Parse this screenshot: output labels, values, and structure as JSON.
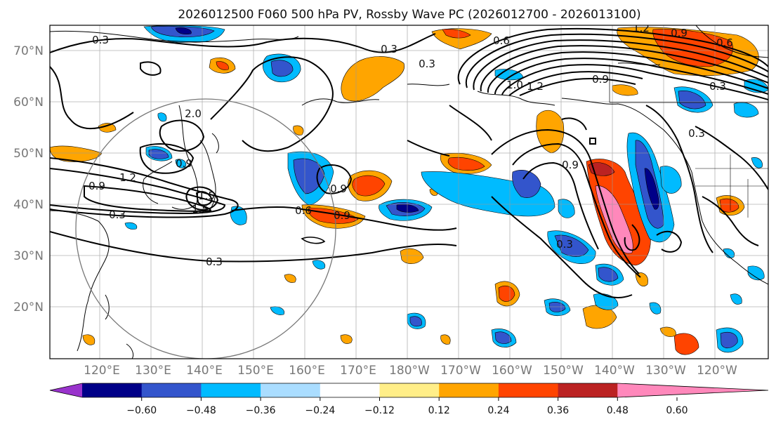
{
  "title": "2026012500 F060 500 hPa PV, Rossby Wave PC (2026012700 - 2026013100)",
  "lat_labels": [
    "70°N",
    "60°N",
    "50°N",
    "40°N",
    "30°N",
    "20°N"
  ],
  "lon_labels": [
    "120°E",
    "130°E",
    "140°E",
    "150°E",
    "160°E",
    "170°E",
    "180°W",
    "170°W",
    "160°W",
    "150°W",
    "140°W",
    "130°W",
    "120°W"
  ],
  "colorbar": {
    "colors": [
      "#9933cc",
      "#000088",
      "#3355cc",
      "#00bbff",
      "#aaddff",
      "#ffffff",
      "#ffee88",
      "#ffa500",
      "#ff4400",
      "#bb2222",
      "#ff88bb"
    ],
    "labels": [
      "−0.60",
      "−0.48",
      "−0.36",
      "−0.24",
      "−0.12",
      "0.12",
      "0.24",
      "0.36",
      "0.48",
      "0.60"
    ]
  },
  "contour_labels": [
    "0.3",
    "0.3",
    "0.3",
    "0.3",
    "0.3",
    "0.3",
    "0.3",
    "0.3",
    "0.6",
    "0.6",
    "0.6",
    "0.9",
    "0.9",
    "0.9",
    "0.9",
    "0.9",
    "0.9",
    "0.9",
    "1.2",
    "1.2",
    "1.2",
    "1.5",
    "1.5",
    "2.0",
    "1.0"
  ]
}
